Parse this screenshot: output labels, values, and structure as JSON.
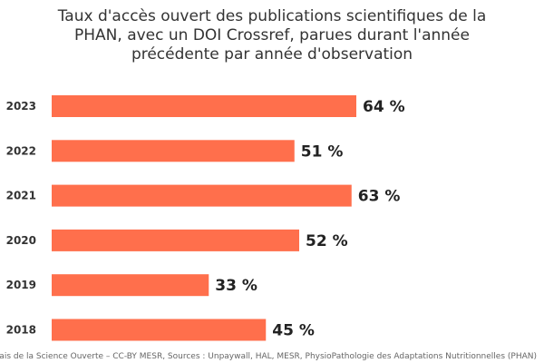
{
  "chart_data": {
    "type": "bar",
    "orientation": "horizontal",
    "title_lines": [
      "Taux d'accès ouvert des publications scientifiques de la",
      "PHAN, avec un DOI Crossref, parues durant l'année",
      "précédente par année d'observation"
    ],
    "categories": [
      "2023",
      "2022",
      "2021",
      "2020",
      "2019",
      "2018"
    ],
    "values": [
      64,
      51,
      63,
      52,
      33,
      45
    ],
    "value_labels": [
      "64 %",
      "51 %",
      "63 %",
      "52 %",
      "33 %",
      "45 %"
    ],
    "xlim": [
      0,
      100
    ],
    "xlabel": "",
    "ylabel": "",
    "grid": false,
    "legend": "none",
    "bar_color": "#ff6f4c",
    "credits": "Baromètre français de la Science Ouverte – CC-BY MESR, Sources : Unpaywall, HAL, MESR, PhysioPathologie des Adaptations Nutritionnelles (PHAN)"
  }
}
